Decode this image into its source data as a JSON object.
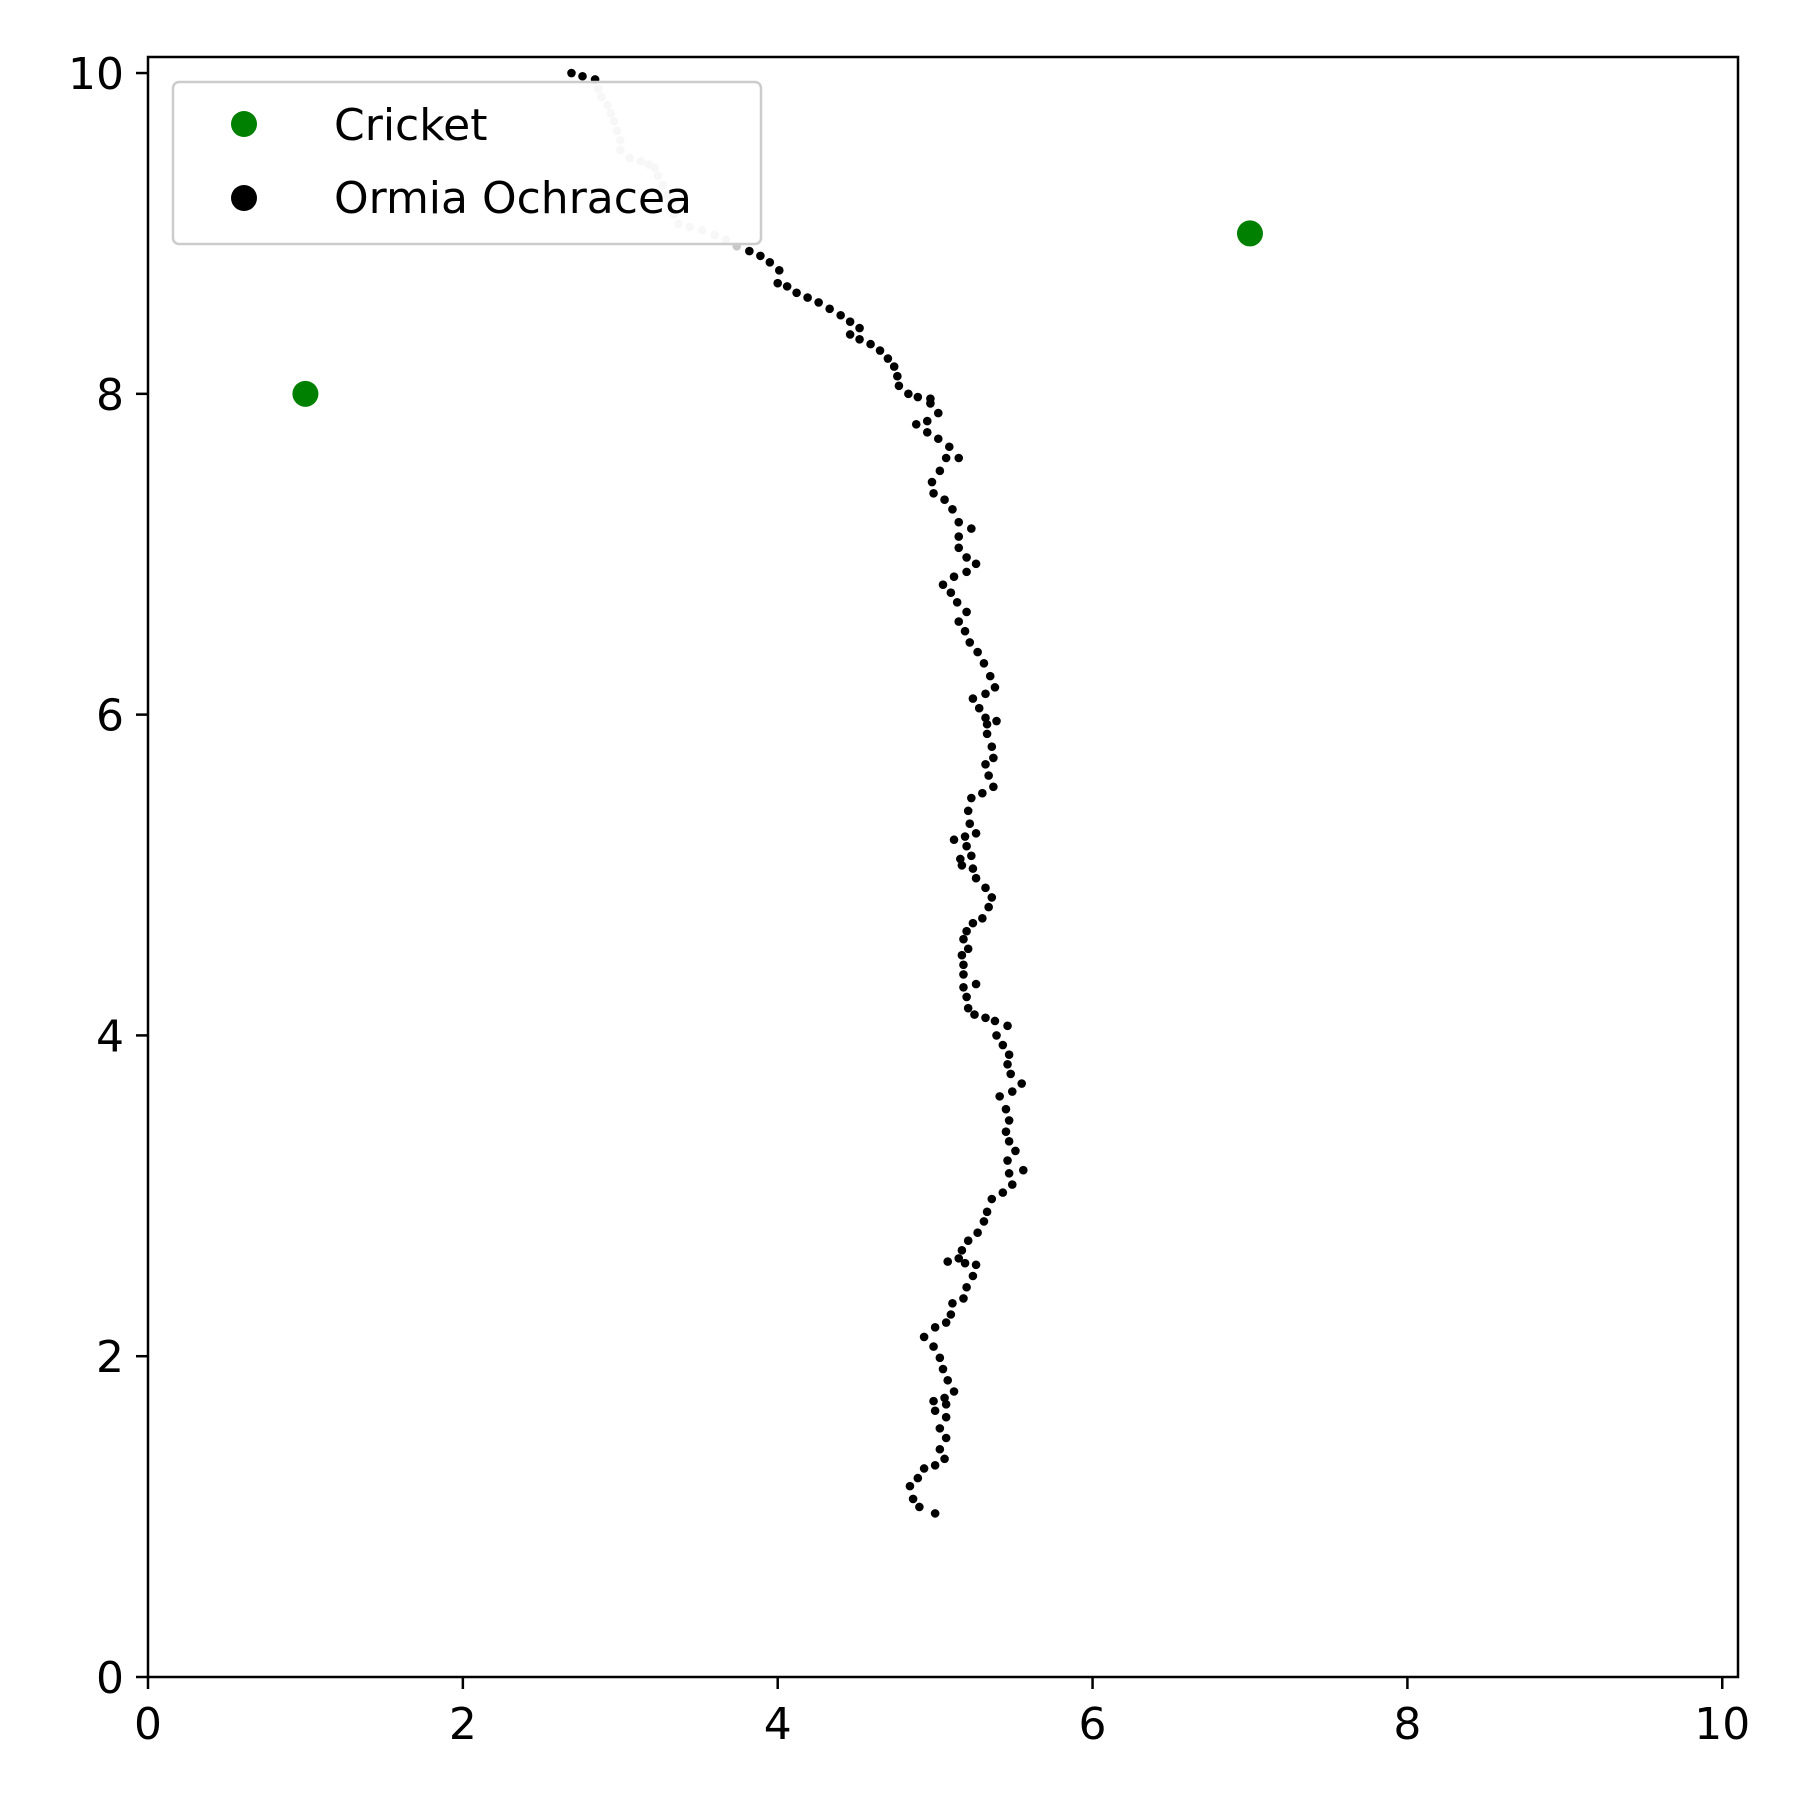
{
  "chart_data": {
    "type": "scatter",
    "title": "",
    "xlabel": "",
    "ylabel": "",
    "xlim": [
      0,
      10.1
    ],
    "ylim": [
      0,
      10.1
    ],
    "xticks": [
      "0",
      "2",
      "4",
      "6",
      "8",
      "10"
    ],
    "yticks": [
      "0",
      "2",
      "4",
      "6",
      "8",
      "10"
    ],
    "grid": false,
    "legend": {
      "position": "upper-left",
      "entries": [
        {
          "label": "Cricket",
          "color": "#008000"
        },
        {
          "label": "Ormia Ochracea",
          "color": "#000000"
        }
      ]
    },
    "series": [
      {
        "name": "Cricket",
        "color": "#008000",
        "points": [
          [
            1.0,
            8.0
          ],
          [
            7.0,
            9.0
          ]
        ]
      },
      {
        "name": "Ormia Ochracea",
        "color": "#000000",
        "faded_color": "#c8c8c8",
        "faded_range": [
          3,
          25
        ],
        "points": [
          [
            2.69,
            10.0
          ],
          [
            2.76,
            9.98
          ],
          [
            2.84,
            9.96
          ],
          [
            2.86,
            9.9
          ],
          [
            2.88,
            9.85
          ],
          [
            2.92,
            9.8
          ],
          [
            2.94,
            9.75
          ],
          [
            2.96,
            9.7
          ],
          [
            2.98,
            9.64
          ],
          [
            3.0,
            9.58
          ],
          [
            3.0,
            9.52
          ],
          [
            3.06,
            9.47
          ],
          [
            3.13,
            9.45
          ],
          [
            3.18,
            9.43
          ],
          [
            3.22,
            9.41
          ],
          [
            3.24,
            9.36
          ],
          [
            3.27,
            9.3
          ],
          [
            3.3,
            9.24
          ],
          [
            3.32,
            9.18
          ],
          [
            3.34,
            9.12
          ],
          [
            3.37,
            9.06
          ],
          [
            3.44,
            9.04
          ],
          [
            3.52,
            9.02
          ],
          [
            3.6,
            8.99
          ],
          [
            3.67,
            8.96
          ],
          [
            3.74,
            8.92
          ],
          [
            3.82,
            8.89
          ],
          [
            3.89,
            8.86
          ],
          [
            3.95,
            8.82
          ],
          [
            4.01,
            8.77
          ],
          [
            4.0,
            8.69
          ],
          [
            4.06,
            8.67
          ],
          [
            4.12,
            8.63
          ],
          [
            4.19,
            8.6
          ],
          [
            4.26,
            8.57
          ],
          [
            4.33,
            8.53
          ],
          [
            4.4,
            8.49
          ],
          [
            4.46,
            8.45
          ],
          [
            4.52,
            8.41
          ],
          [
            4.46,
            8.37
          ],
          [
            4.52,
            8.34
          ],
          [
            4.59,
            8.31
          ],
          [
            4.65,
            8.27
          ],
          [
            4.7,
            8.22
          ],
          [
            4.74,
            8.17
          ],
          [
            4.76,
            8.11
          ],
          [
            4.77,
            8.05
          ],
          [
            4.83,
            8.0
          ],
          [
            4.89,
            7.98
          ],
          [
            4.97,
            7.97
          ],
          [
            4.97,
            7.94
          ],
          [
            5.02,
            7.88
          ],
          [
            4.95,
            7.83
          ],
          [
            4.88,
            7.81
          ],
          [
            4.95,
            7.76
          ],
          [
            5.02,
            7.72
          ],
          [
            5.09,
            7.67
          ],
          [
            5.07,
            7.6
          ],
          [
            5.15,
            7.6
          ],
          [
            5.03,
            7.52
          ],
          [
            4.98,
            7.45
          ],
          [
            4.99,
            7.38
          ],
          [
            5.06,
            7.34
          ],
          [
            5.11,
            7.28
          ],
          [
            5.15,
            7.2
          ],
          [
            5.23,
            7.16
          ],
          [
            5.15,
            7.11
          ],
          [
            5.15,
            7.04
          ],
          [
            5.2,
            6.98
          ],
          [
            5.26,
            6.94
          ],
          [
            5.2,
            6.89
          ],
          [
            5.12,
            6.86
          ],
          [
            5.05,
            6.81
          ],
          [
            5.1,
            6.76
          ],
          [
            5.14,
            6.7
          ],
          [
            5.2,
            6.64
          ],
          [
            5.15,
            6.58
          ],
          [
            5.19,
            6.52
          ],
          [
            5.22,
            6.45
          ],
          [
            5.27,
            6.39
          ],
          [
            5.31,
            6.32
          ],
          [
            5.35,
            6.24
          ],
          [
            5.38,
            6.17
          ],
          [
            5.32,
            6.13
          ],
          [
            5.24,
            6.1
          ],
          [
            5.28,
            6.04
          ],
          [
            5.32,
            5.98
          ],
          [
            5.39,
            5.96
          ],
          [
            5.33,
            5.94
          ],
          [
            5.33,
            5.88
          ],
          [
            5.36,
            5.8
          ],
          [
            5.37,
            5.73
          ],
          [
            5.32,
            5.69
          ],
          [
            5.34,
            5.62
          ],
          [
            5.37,
            5.55
          ],
          [
            5.3,
            5.51
          ],
          [
            5.23,
            5.48
          ],
          [
            5.21,
            5.4
          ],
          [
            5.22,
            5.32
          ],
          [
            5.26,
            5.26
          ],
          [
            5.19,
            5.24
          ],
          [
            5.12,
            5.22
          ],
          [
            5.2,
            5.18
          ],
          [
            5.23,
            5.12
          ],
          [
            5.16,
            5.1
          ],
          [
            5.17,
            5.06
          ],
          [
            5.24,
            5.04
          ],
          [
            5.26,
            4.98
          ],
          [
            5.32,
            4.92
          ],
          [
            5.36,
            4.86
          ],
          [
            5.34,
            4.8
          ],
          [
            5.3,
            4.73
          ],
          [
            5.24,
            4.7
          ],
          [
            5.2,
            4.65
          ],
          [
            5.18,
            4.6
          ],
          [
            5.21,
            4.54
          ],
          [
            5.17,
            4.5
          ],
          [
            5.18,
            4.44
          ],
          [
            5.18,
            4.38
          ],
          [
            5.26,
            4.32
          ],
          [
            5.18,
            4.3
          ],
          [
            5.2,
            4.24
          ],
          [
            5.21,
            4.17
          ],
          [
            5.25,
            4.13
          ],
          [
            5.32,
            4.11
          ],
          [
            5.38,
            4.09
          ],
          [
            5.46,
            4.06
          ],
          [
            5.39,
            4.0
          ],
          [
            5.43,
            3.94
          ],
          [
            5.47,
            3.88
          ],
          [
            5.46,
            3.82
          ],
          [
            5.48,
            3.76
          ],
          [
            5.55,
            3.7
          ],
          [
            5.49,
            3.65
          ],
          [
            5.41,
            3.62
          ],
          [
            5.45,
            3.54
          ],
          [
            5.47,
            3.47
          ],
          [
            5.45,
            3.4
          ],
          [
            5.47,
            3.34
          ],
          [
            5.51,
            3.28
          ],
          [
            5.46,
            3.22
          ],
          [
            5.56,
            3.16
          ],
          [
            5.47,
            3.14
          ],
          [
            5.49,
            3.07
          ],
          [
            5.43,
            3.02
          ],
          [
            5.36,
            2.98
          ],
          [
            5.33,
            2.9
          ],
          [
            5.31,
            2.84
          ],
          [
            5.27,
            2.77
          ],
          [
            5.21,
            2.72
          ],
          [
            5.17,
            2.66
          ],
          [
            5.15,
            2.61
          ],
          [
            5.08,
            2.59
          ],
          [
            5.19,
            2.58
          ],
          [
            5.26,
            2.57
          ],
          [
            5.24,
            2.5
          ],
          [
            5.2,
            2.43
          ],
          [
            5.18,
            2.36
          ],
          [
            5.11,
            2.33
          ],
          [
            5.1,
            2.26
          ],
          [
            5.07,
            2.21
          ],
          [
            5.0,
            2.18
          ],
          [
            4.93,
            2.12
          ],
          [
            4.99,
            2.06
          ],
          [
            5.03,
            1.99
          ],
          [
            5.05,
            1.92
          ],
          [
            5.08,
            1.85
          ],
          [
            5.12,
            1.78
          ],
          [
            5.06,
            1.74
          ],
          [
            4.99,
            1.72
          ],
          [
            5.07,
            1.7
          ],
          [
            5.0,
            1.66
          ],
          [
            5.07,
            1.62
          ],
          [
            5.03,
            1.55
          ],
          [
            5.07,
            1.49
          ],
          [
            5.03,
            1.42
          ],
          [
            5.06,
            1.36
          ],
          [
            5.0,
            1.32
          ],
          [
            4.93,
            1.3
          ],
          [
            4.89,
            1.24
          ],
          [
            4.84,
            1.19
          ],
          [
            4.86,
            1.11
          ],
          [
            4.9,
            1.06
          ],
          [
            5.0,
            1.02
          ]
        ]
      }
    ]
  }
}
